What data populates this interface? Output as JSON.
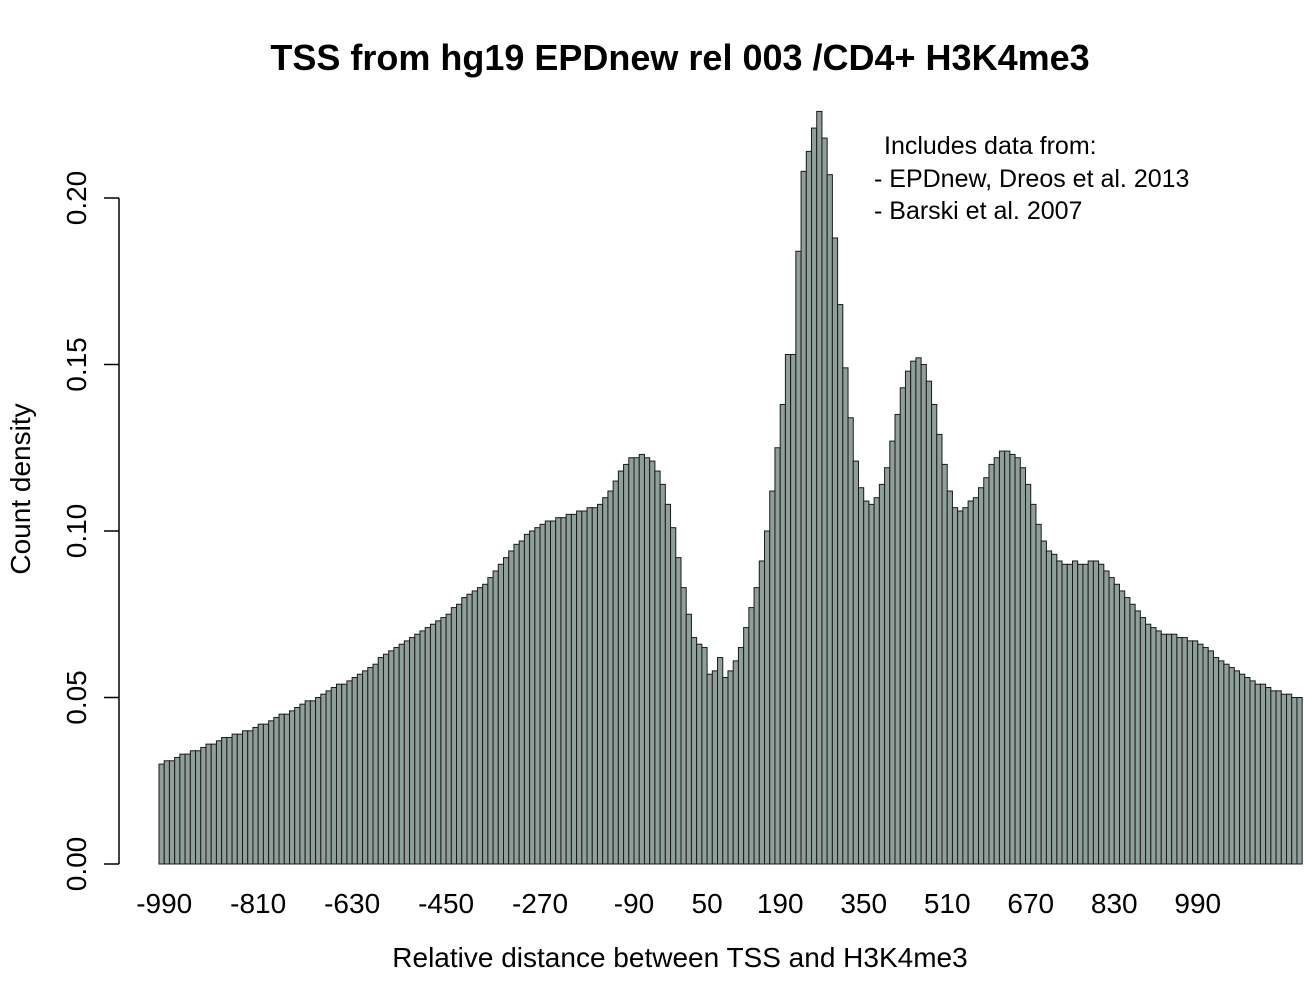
{
  "chart_data": {
    "type": "bar",
    "title": "TSS from hg19 EPDnew rel 003 /CD4+ H3K4me3",
    "xlabel": "Relative distance between TSS and H3K4me3",
    "ylabel": "Count density",
    "xlim": [
      -1000,
      1000
    ],
    "ylim": [
      0,
      0.22
    ],
    "y_ticks": [
      "0.00",
      "0.05",
      "0.10",
      "0.15",
      "0.20"
    ],
    "x_ticks": [
      "-990",
      "-810",
      "-630",
      "-450",
      "-270",
      "-90",
      "50",
      "190",
      "350",
      "510",
      "670",
      "830",
      "990"
    ],
    "bar_color": "#8f9f99",
    "bin_width": 10,
    "grid": false,
    "annotation": {
      "lines": [
        "Includes data from:",
        "- EPDnew, Dreos et al. 2013",
        "- Barski et al. 2007"
      ],
      "position": "top-right"
    },
    "values": [
      0.03,
      0.031,
      0.031,
      0.032,
      0.033,
      0.033,
      0.034,
      0.034,
      0.035,
      0.036,
      0.036,
      0.037,
      0.038,
      0.038,
      0.039,
      0.039,
      0.04,
      0.04,
      0.041,
      0.042,
      0.042,
      0.043,
      0.044,
      0.045,
      0.045,
      0.046,
      0.047,
      0.048,
      0.049,
      0.049,
      0.05,
      0.051,
      0.052,
      0.053,
      0.054,
      0.054,
      0.055,
      0.056,
      0.057,
      0.058,
      0.059,
      0.06,
      0.062,
      0.063,
      0.064,
      0.065,
      0.066,
      0.067,
      0.068,
      0.069,
      0.07,
      0.071,
      0.072,
      0.073,
      0.074,
      0.075,
      0.077,
      0.078,
      0.08,
      0.081,
      0.082,
      0.083,
      0.084,
      0.086,
      0.088,
      0.09,
      0.092,
      0.094,
      0.096,
      0.097,
      0.099,
      0.1,
      0.101,
      0.102,
      0.103,
      0.103,
      0.104,
      0.104,
      0.105,
      0.105,
      0.106,
      0.106,
      0.107,
      0.107,
      0.108,
      0.11,
      0.112,
      0.115,
      0.118,
      0.12,
      0.122,
      0.122,
      0.123,
      0.122,
      0.121,
      0.118,
      0.114,
      0.108,
      0.101,
      0.092,
      0.083,
      0.075,
      0.068,
      0.066,
      0.065,
      0.057,
      0.058,
      0.062,
      0.056,
      0.058,
      0.061,
      0.065,
      0.071,
      0.077,
      0.083,
      0.091,
      0.1,
      0.112,
      0.125,
      0.138,
      0.153,
      0.153,
      0.184,
      0.208,
      0.214,
      0.221,
      0.226,
      0.218,
      0.207,
      0.188,
      0.168,
      0.149,
      0.134,
      0.121,
      0.113,
      0.109,
      0.108,
      0.11,
      0.114,
      0.119,
      0.127,
      0.135,
      0.143,
      0.148,
      0.151,
      0.152,
      0.15,
      0.145,
      0.138,
      0.129,
      0.12,
      0.112,
      0.107,
      0.106,
      0.107,
      0.109,
      0.11,
      0.113,
      0.116,
      0.12,
      0.122,
      0.124,
      0.124,
      0.123,
      0.122,
      0.119,
      0.114,
      0.108,
      0.102,
      0.097,
      0.094,
      0.093,
      0.091,
      0.09,
      0.09,
      0.091,
      0.09,
      0.09,
      0.091,
      0.091,
      0.09,
      0.088,
      0.086,
      0.084,
      0.082,
      0.08,
      0.078,
      0.076,
      0.074,
      0.072,
      0.071,
      0.07,
      0.069,
      0.069,
      0.069,
      0.068,
      0.068,
      0.067,
      0.067,
      0.066,
      0.065,
      0.064,
      0.062,
      0.061,
      0.06,
      0.059,
      0.058,
      0.057,
      0.056,
      0.055,
      0.054,
      0.054,
      0.053,
      0.052,
      0.052,
      0.051,
      0.051,
      0.05,
      0.05
    ]
  }
}
